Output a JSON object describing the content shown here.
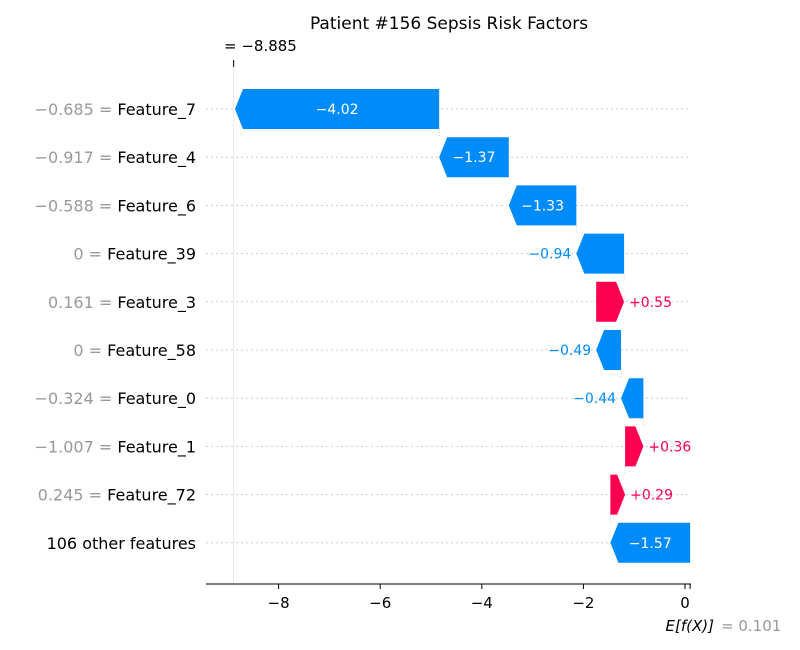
{
  "colors": {
    "positive": "#ff0051",
    "negative": "#008bfb",
    "value_text": "#999999",
    "gridline": "#cccccc"
  },
  "chart_data": {
    "type": "waterfall",
    "title": "Patient #156 Sepsis Risk Factors",
    "base_value": 0.101,
    "base_label": "E[f(X)]",
    "base_value_text": "= 0.101",
    "fx_value": -8.885,
    "fx_label_text": "= −8.885",
    "xlim": [
      -9.5,
      0.1
    ],
    "xticks": [
      -8,
      -6,
      -4,
      -2,
      0
    ],
    "xtick_labels": [
      "−8",
      "−6",
      "−4",
      "−2",
      "0"
    ],
    "features": [
      {
        "value": "−0.685",
        "name": "Feature_7",
        "contribution": -4.02,
        "label": "−4.02"
      },
      {
        "value": "−0.917",
        "name": "Feature_4",
        "contribution": -1.37,
        "label": "−1.37"
      },
      {
        "value": "−0.588",
        "name": "Feature_6",
        "contribution": -1.33,
        "label": "−1.33"
      },
      {
        "value": "0",
        "name": "Feature_39",
        "contribution": -0.94,
        "label": "−0.94"
      },
      {
        "value": "0.161",
        "name": "Feature_3",
        "contribution": 0.55,
        "label": "+0.55"
      },
      {
        "value": "0",
        "name": "Feature_58",
        "contribution": -0.49,
        "label": "−0.49"
      },
      {
        "value": "−0.324",
        "name": "Feature_0",
        "contribution": -0.44,
        "label": "−0.44"
      },
      {
        "value": "−1.007",
        "name": "Feature_1",
        "contribution": 0.36,
        "label": "+0.36"
      },
      {
        "value": "0.245",
        "name": "Feature_72",
        "contribution": 0.29,
        "label": "+0.29"
      },
      {
        "value": "",
        "name": "106 other features",
        "contribution": -1.57,
        "label": "−1.57"
      }
    ]
  }
}
